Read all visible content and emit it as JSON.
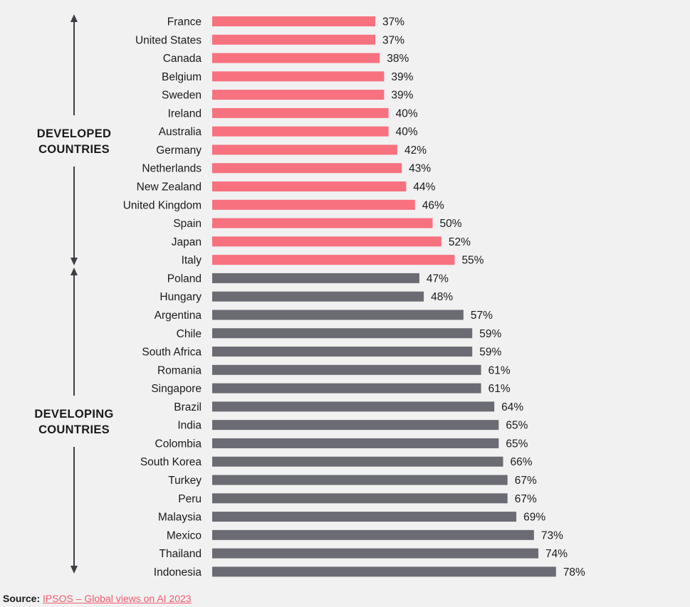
{
  "chart_data": {
    "type": "bar",
    "orientation": "horizontal",
    "unit": "%",
    "groups": [
      {
        "name_lines": [
          "DEVELOPED",
          "COUNTRIES"
        ],
        "color": "#f7717f",
        "categories": [
          "France",
          "United States",
          "Canada",
          "Belgium",
          "Sweden",
          "Ireland",
          "Australia",
          "Germany",
          "Netherlands",
          "New Zealand",
          "United Kingdom",
          "Spain",
          "Japan",
          "Italy"
        ],
        "values": [
          37,
          37,
          38,
          39,
          39,
          40,
          40,
          42,
          43,
          44,
          46,
          50,
          52,
          55
        ]
      },
      {
        "name_lines": [
          "DEVELOPING",
          "COUNTRIES"
        ],
        "color": "#6b6b73",
        "categories": [
          "Poland",
          "Hungary",
          "Argentina",
          "Chile",
          "South Africa",
          "Romania",
          "Singapore",
          "Brazil",
          "India",
          "Colombia",
          "South Korea",
          "Turkey",
          "Peru",
          "Malaysia",
          "Mexico",
          "Thailand",
          "Indonesia"
        ],
        "values": [
          47,
          48,
          57,
          59,
          59,
          61,
          61,
          64,
          65,
          65,
          66,
          67,
          67,
          69,
          73,
          74,
          78
        ]
      }
    ],
    "xlim": [
      0,
      100
    ],
    "grid": false,
    "legend": "none"
  },
  "source": {
    "prefix": "Source:",
    "link_text": "IPSOS – Global views on AI 2023"
  },
  "colors": {
    "arrow": "#3d3d47",
    "text": "#1a1a1a",
    "link": "#f25b6e",
    "background": "#f1f1f1"
  }
}
